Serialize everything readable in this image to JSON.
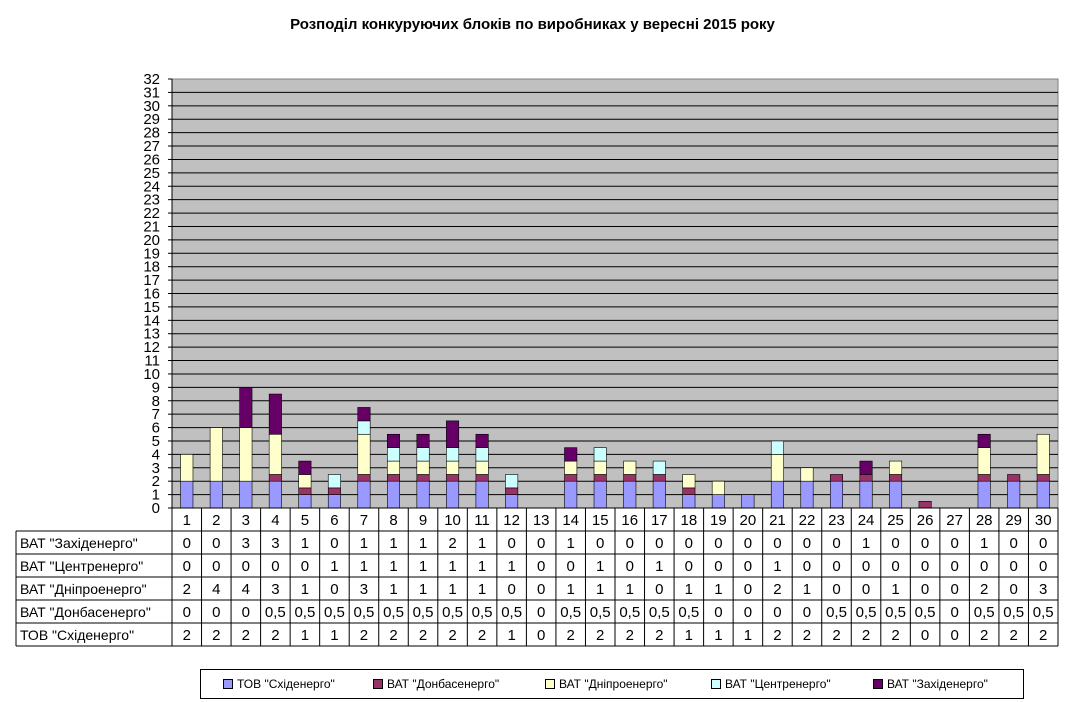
{
  "chart_data": {
    "type": "bar",
    "stacked": true,
    "title": "Розподіл конкуруючих блоків по виробниках у вересні 2015 року",
    "xlabel": "",
    "ylabel": "",
    "ylim": [
      0,
      32
    ],
    "yticks": [
      "0",
      "1",
      "2",
      "3",
      "4",
      "5",
      "6",
      "7",
      "8",
      "9",
      "10",
      "11",
      "12",
      "13",
      "14",
      "15",
      "16",
      "17",
      "18",
      "19",
      "20",
      "21",
      "22",
      "23",
      "24",
      "25",
      "26",
      "27",
      "28",
      "29",
      "30",
      "31",
      "32"
    ],
    "categories": [
      "1",
      "2",
      "3",
      "4",
      "5",
      "6",
      "7",
      "8",
      "9",
      "10",
      "11",
      "12",
      "13",
      "14",
      "15",
      "16",
      "17",
      "18",
      "19",
      "20",
      "21",
      "22",
      "23",
      "24",
      "25",
      "26",
      "27",
      "28",
      "29",
      "30"
    ],
    "grid": true,
    "legend_position": "bottom",
    "series": [
      {
        "name": "ТОВ \"Східенерго\"",
        "color": "#9999ff",
        "values": [
          2,
          2,
          2,
          2,
          1,
          1,
          2,
          2,
          2,
          2,
          2,
          1,
          0,
          2,
          2,
          2,
          2,
          1,
          1,
          1,
          2,
          2,
          2,
          2,
          2,
          0,
          0,
          2,
          2,
          2
        ],
        "labels": [
          "2",
          "2",
          "2",
          "2",
          "1",
          "1",
          "2",
          "2",
          "2",
          "2",
          "2",
          "1",
          "0",
          "2",
          "2",
          "2",
          "2",
          "1",
          "1",
          "1",
          "2",
          "2",
          "2",
          "2",
          "2",
          "0",
          "0",
          "2",
          "2",
          "2"
        ]
      },
      {
        "name": "ВАТ \"Донбасенерго\"",
        "color": "#993366",
        "values": [
          0,
          0,
          0,
          0.5,
          0.5,
          0.5,
          0.5,
          0.5,
          0.5,
          0.5,
          0.5,
          0.5,
          0,
          0.5,
          0.5,
          0.5,
          0.5,
          0.5,
          0,
          0,
          0,
          0,
          0.5,
          0.5,
          0.5,
          0.5,
          0,
          0.5,
          0.5,
          0.5
        ],
        "labels": [
          "0",
          "0",
          "0",
          "0,5",
          "0,5",
          "0,5",
          "0,5",
          "0,5",
          "0,5",
          "0,5",
          "0,5",
          "0,5",
          "0",
          "0,5",
          "0,5",
          "0,5",
          "0,5",
          "0,5",
          "0",
          "0",
          "0",
          "0",
          "0,5",
          "0,5",
          "0,5",
          "0,5",
          "0",
          "0,5",
          "0,5",
          "0,5"
        ]
      },
      {
        "name": "ВАТ \"Дніпроенерго\"",
        "color": "#ffffcc",
        "values": [
          2,
          4,
          4,
          3,
          1,
          0,
          3,
          1,
          1,
          1,
          1,
          0,
          0,
          1,
          1,
          1,
          0,
          1,
          1,
          0,
          2,
          1,
          0,
          0,
          1,
          0,
          0,
          2,
          0,
          3
        ],
        "labels": [
          "2",
          "4",
          "4",
          "3",
          "1",
          "0",
          "3",
          "1",
          "1",
          "1",
          "1",
          "0",
          "0",
          "1",
          "1",
          "1",
          "0",
          "1",
          "1",
          "0",
          "2",
          "1",
          "0",
          "0",
          "1",
          "0",
          "0",
          "2",
          "0",
          "3"
        ]
      },
      {
        "name": "ВАТ \"Центренерго\"",
        "color": "#ccffff",
        "values": [
          0,
          0,
          0,
          0,
          0,
          1,
          1,
          1,
          1,
          1,
          1,
          1,
          0,
          0,
          1,
          0,
          1,
          0,
          0,
          0,
          1,
          0,
          0,
          0,
          0,
          0,
          0,
          0,
          0,
          0
        ],
        "labels": [
          "0",
          "0",
          "0",
          "0",
          "0",
          "1",
          "1",
          "1",
          "1",
          "1",
          "1",
          "1",
          "0",
          "0",
          "1",
          "0",
          "1",
          "0",
          "0",
          "0",
          "1",
          "0",
          "0",
          "0",
          "0",
          "0",
          "0",
          "0",
          "0",
          "0"
        ]
      },
      {
        "name": "ВАТ \"Західенерго\"",
        "color": "#660066",
        "values": [
          0,
          0,
          3,
          3,
          1,
          0,
          1,
          1,
          1,
          2,
          1,
          0,
          0,
          1,
          0,
          0,
          0,
          0,
          0,
          0,
          0,
          0,
          0,
          1,
          0,
          0,
          0,
          1,
          0,
          0
        ],
        "labels": [
          "0",
          "0",
          "3",
          "3",
          "1",
          "0",
          "1",
          "1",
          "1",
          "2",
          "1",
          "0",
          "0",
          "1",
          "0",
          "0",
          "0",
          "0",
          "0",
          "0",
          "0",
          "0",
          "0",
          "1",
          "0",
          "0",
          "0",
          "1",
          "0",
          "0"
        ]
      }
    ],
    "table_row_order": [
      4,
      3,
      2,
      1,
      0
    ]
  }
}
